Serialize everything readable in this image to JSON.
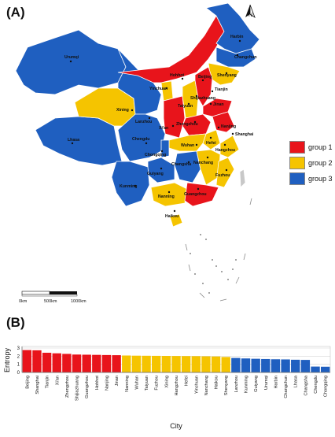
{
  "panel_a_label": "(A)",
  "panel_b_label": "(B)",
  "colors": {
    "group1": "#e8141b",
    "group2": "#f5c400",
    "group3": "#1f5fc0",
    "border": "#7aa5d8",
    "province_line": "#ffffff"
  },
  "map": {
    "north_label": "N",
    "scale_bar": {
      "ticks": [
        "0km",
        "500km",
        "1000km"
      ]
    },
    "legend": [
      {
        "label": "group 1",
        "color": "#e8141b"
      },
      {
        "label": "group 2",
        "color": "#f5c400"
      },
      {
        "label": "group 3",
        "color": "#1f5fc0"
      }
    ],
    "cities": [
      {
        "name": "Harbin"
      },
      {
        "name": "Changchun"
      },
      {
        "name": "Shenyang"
      },
      {
        "name": "Urumqi"
      },
      {
        "name": "Hohhot"
      },
      {
        "name": "Beijing"
      },
      {
        "name": "Tianjin"
      },
      {
        "name": "Yinchuan"
      },
      {
        "name": "Shijiazhuang"
      },
      {
        "name": "Xining"
      },
      {
        "name": "Taiyuan"
      },
      {
        "name": "Jinan"
      },
      {
        "name": "Lanzhou"
      },
      {
        "name": "Zhengzhou"
      },
      {
        "name": "Xi'an"
      },
      {
        "name": "Nanjing"
      },
      {
        "name": "Shanghai"
      },
      {
        "name": "Hefei"
      },
      {
        "name": "Lhasa"
      },
      {
        "name": "Chengdu"
      },
      {
        "name": "Wuhan"
      },
      {
        "name": "Hangzhou"
      },
      {
        "name": "Chongqing"
      },
      {
        "name": "Nanchang"
      },
      {
        "name": "Changsha"
      },
      {
        "name": "Guiyang"
      },
      {
        "name": "Fuzhou"
      },
      {
        "name": "Kunming"
      },
      {
        "name": "Nanning"
      },
      {
        "name": "Guangzhou"
      },
      {
        "name": "Haikou"
      }
    ]
  },
  "chart_data": {
    "type": "bar",
    "title": "",
    "xlabel": "City",
    "ylabel": "Entropy",
    "ylim": [
      0,
      3
    ],
    "yticks": [
      0,
      1,
      2,
      3
    ],
    "grid": true,
    "categories": [
      "Beijing",
      "Shanghai",
      "Tianjin",
      "Xi'an",
      "Zhengzhou",
      "Shijiazhuang",
      "Guangzhou",
      "Hohhot",
      "Nanjing",
      "Jinan",
      "Nanning",
      "Wuhan",
      "Taiyuan",
      "Fuzhou",
      "Xining",
      "Hangzhou",
      "Hefei",
      "Yinchuan",
      "Nanchang",
      "Haikou",
      "Shenyang",
      "Lanzhou",
      "Kunming",
      "Guiyang",
      "Urumqi",
      "Harbin",
      "Changchun",
      "Lhasa",
      "Changsha",
      "Chengdu",
      "Chongqing"
    ],
    "values": [
      2.75,
      2.72,
      2.42,
      2.35,
      2.28,
      2.2,
      2.18,
      2.16,
      2.14,
      2.12,
      2.08,
      2.06,
      2.05,
      2.04,
      2.03,
      2.02,
      2.01,
      2.0,
      1.98,
      1.96,
      1.9,
      1.78,
      1.72,
      1.68,
      1.65,
      1.62,
      1.6,
      1.56,
      1.54,
      0.72,
      0.7
    ],
    "groups": [
      1,
      1,
      1,
      1,
      1,
      1,
      1,
      1,
      1,
      1,
      2,
      2,
      2,
      2,
      2,
      2,
      2,
      2,
      2,
      2,
      2,
      3,
      3,
      3,
      3,
      3,
      3,
      3,
      3,
      3,
      3
    ]
  }
}
